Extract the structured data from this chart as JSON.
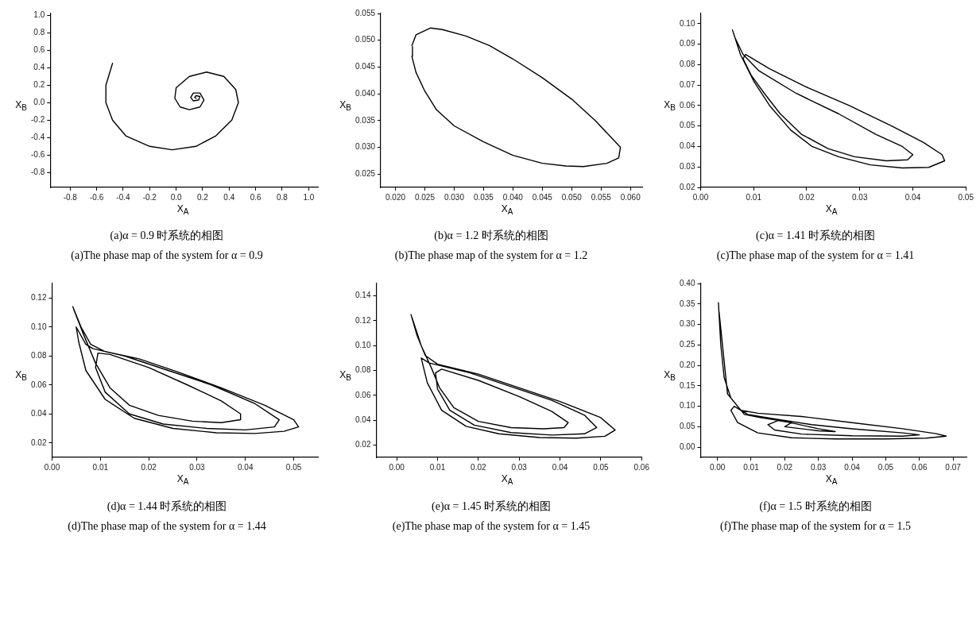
{
  "chart_data": [
    {
      "type": "line",
      "xlabel": "X$_{A}$",
      "ylabel": "X$_{B}$",
      "annotations": [
        "(a)α = 0.9 时系统的相图",
        "(a)The phase map of the system for α = 0.9"
      ],
      "grid": false,
      "legend": false,
      "marker": "none",
      "line_style": "solid",
      "xlim": [
        -0.95,
        1.07
      ],
      "ylim": [
        -0.97,
        1.02
      ],
      "xticks": [
        {
          "value": -0.8,
          "label": "-0.8"
        },
        {
          "value": -0.6,
          "label": "-0.6"
        },
        {
          "value": -0.4,
          "label": "-0.4"
        },
        {
          "value": -0.2,
          "label": "-0.2"
        },
        {
          "value": 0,
          "label": "0.0"
        },
        {
          "value": 0.2,
          "label": "0.2"
        },
        {
          "value": 0.4,
          "label": "0.4"
        },
        {
          "value": 0.6,
          "label": "0.6"
        },
        {
          "value": 0.8,
          "label": "0.8"
        },
        {
          "value": 1,
          "label": "1.0"
        }
      ],
      "yticks": [
        {
          "value": -0.8,
          "label": "-0.8"
        },
        {
          "value": -0.6,
          "label": "-0.6"
        },
        {
          "value": -0.4,
          "label": "-0.4"
        },
        {
          "value": -0.2,
          "label": "-0.2"
        },
        {
          "value": 0,
          "label": "0.0"
        },
        {
          "value": 0.2,
          "label": "0.2"
        },
        {
          "value": 0.4,
          "label": "0.4"
        },
        {
          "value": 0.6,
          "label": "0.6"
        },
        {
          "value": 0.8,
          "label": "0.8"
        },
        {
          "value": 1,
          "label": "1.0"
        }
      ],
      "series": [
        {
          "color": "#000000",
          "x": [
            -0.48,
            -0.53,
            -0.53,
            -0.48,
            -0.38,
            -0.2,
            -0.03,
            0.15,
            0.3,
            0.42,
            0.47,
            0.45,
            0.36,
            0.23,
            0.1,
            0.0,
            -0.01,
            0.03,
            0.1,
            0.18,
            0.21,
            0.18,
            0.13,
            0.11,
            0.13,
            0.17,
            0.18,
            0.15,
            0.14,
            0.15
          ],
          "values": [
            0.45,
            0.2,
            0.0,
            -0.2,
            -0.38,
            -0.5,
            -0.54,
            -0.5,
            -0.38,
            -0.2,
            0.0,
            0.15,
            0.3,
            0.35,
            0.3,
            0.17,
            0.05,
            -0.05,
            -0.08,
            -0.05,
            0.03,
            0.11,
            0.11,
            0.06,
            0.02,
            0.03,
            0.07,
            0.08,
            0.06,
            0.05
          ]
        }
      ]
    },
    {
      "type": "line",
      "xlabel": "X$_{A}$",
      "ylabel": "X$_{B}$",
      "annotations": [
        "(b)α = 1.2 时系统的相图",
        "(b)The phase map of the system for α = 1.2"
      ],
      "grid": false,
      "legend": false,
      "marker": "none",
      "line_style": "solid",
      "xlim": [
        0.0175,
        0.062
      ],
      "ylim": [
        0.0225,
        0.055
      ],
      "xticks": [
        {
          "value": 0.02,
          "label": "0.020"
        },
        {
          "value": 0.025,
          "label": "0.025"
        },
        {
          "value": 0.03,
          "label": "0.030"
        },
        {
          "value": 0.035,
          "label": "0.035"
        },
        {
          "value": 0.04,
          "label": "0.040"
        },
        {
          "value": 0.045,
          "label": "0.045"
        },
        {
          "value": 0.05,
          "label": "0.050"
        },
        {
          "value": 0.055,
          "label": "0.055"
        },
        {
          "value": 0.06,
          "label": "0.060"
        }
      ],
      "yticks": [
        {
          "value": 0.025,
          "label": "0.025"
        },
        {
          "value": 0.03,
          "label": "0.030"
        },
        {
          "value": 0.035,
          "label": "0.035"
        },
        {
          "value": 0.04,
          "label": "0.040"
        },
        {
          "value": 0.045,
          "label": "0.045"
        },
        {
          "value": 0.05,
          "label": "0.050"
        },
        {
          "value": 0.055,
          "label": "0.055"
        }
      ],
      "series": [
        {
          "color": "#000000",
          "x": [
            0.0228,
            0.0235,
            0.026,
            0.028,
            0.032,
            0.036,
            0.04,
            0.045,
            0.05,
            0.054,
            0.057,
            0.0583,
            0.058,
            0.056,
            0.052,
            0.049,
            0.045,
            0.04,
            0.035,
            0.03,
            0.027,
            0.025,
            0.0235,
            0.0228,
            0.0229
          ],
          "values": [
            0.049,
            0.051,
            0.0523,
            0.052,
            0.0508,
            0.049,
            0.0465,
            0.043,
            0.039,
            0.035,
            0.0315,
            0.03,
            0.028,
            0.027,
            0.0264,
            0.0265,
            0.027,
            0.0285,
            0.031,
            0.034,
            0.037,
            0.0405,
            0.044,
            0.047,
            0.0488
          ]
        }
      ]
    },
    {
      "type": "line",
      "xlabel": "X$_{A}$",
      "ylabel": "X$_{B}$",
      "annotations": [
        "(c)α = 1.41 时系统的相图",
        "(c)The phase map of the system for α = 1.41"
      ],
      "grid": false,
      "legend": false,
      "marker": "none",
      "line_style": "solid",
      "xlim": [
        0,
        0.05
      ],
      "ylim": [
        0.02,
        0.105
      ],
      "xticks": [
        {
          "value": 0,
          "label": "0.00"
        },
        {
          "value": 0.01,
          "label": "0.01"
        },
        {
          "value": 0.02,
          "label": "0.02"
        },
        {
          "value": 0.03,
          "label": "0.03"
        },
        {
          "value": 0.04,
          "label": "0.04"
        },
        {
          "value": 0.05,
          "label": "0.05"
        }
      ],
      "yticks": [
        {
          "value": 0.02,
          "label": "0.02"
        },
        {
          "value": 0.03,
          "label": "0.03"
        },
        {
          "value": 0.04,
          "label": "0.04"
        },
        {
          "value": 0.05,
          "label": "0.05"
        },
        {
          "value": 0.06,
          "label": "0.06"
        },
        {
          "value": 0.07,
          "label": "0.07"
        },
        {
          "value": 0.08,
          "label": "0.08"
        },
        {
          "value": 0.09,
          "label": "0.09"
        },
        {
          "value": 0.1,
          "label": "0.10"
        }
      ],
      "series": [
        {
          "color": "#000000",
          "x": [
            0.006,
            0.0075,
            0.01,
            0.013,
            0.017,
            0.021,
            0.026,
            0.032,
            0.038,
            0.043,
            0.046,
            0.0455,
            0.042,
            0.036,
            0.028,
            0.02,
            0.013,
            0.0085,
            0.008,
            0.0095,
            0.012,
            0.015,
            0.019,
            0.024,
            0.029,
            0.035,
            0.039,
            0.04,
            0.038,
            0.033,
            0.026,
            0.018,
            0.011,
            0.008,
            0.0065,
            0.0062
          ],
          "values": [
            0.097,
            0.085,
            0.072,
            0.06,
            0.048,
            0.04,
            0.035,
            0.031,
            0.0295,
            0.0298,
            0.033,
            0.036,
            0.042,
            0.05,
            0.06,
            0.069,
            0.078,
            0.085,
            0.083,
            0.075,
            0.066,
            0.056,
            0.046,
            0.039,
            0.035,
            0.033,
            0.0335,
            0.036,
            0.04,
            0.046,
            0.056,
            0.066,
            0.077,
            0.085,
            0.093,
            0.0955
          ]
        }
      ]
    },
    {
      "type": "line",
      "xlabel": "X$_{A}$",
      "ylabel": "X$_{B}$",
      "annotations": [
        "(d)α = 1.44 时系统的相图",
        "(d)The phase map of the system for α = 1.44"
      ],
      "grid": false,
      "legend": false,
      "marker": "none",
      "line_style": "solid",
      "xlim": [
        0,
        0.055
      ],
      "ylim": [
        0.01,
        0.13
      ],
      "xticks": [
        {
          "value": 0,
          "label": "0.00"
        },
        {
          "value": 0.01,
          "label": "0.01"
        },
        {
          "value": 0.02,
          "label": "0.02"
        },
        {
          "value": 0.03,
          "label": "0.03"
        },
        {
          "value": 0.04,
          "label": "0.04"
        },
        {
          "value": 0.05,
          "label": "0.05"
        }
      ],
      "yticks": [
        {
          "value": 0.02,
          "label": "0.02"
        },
        {
          "value": 0.04,
          "label": "0.04"
        },
        {
          "value": 0.06,
          "label": "0.06"
        },
        {
          "value": 0.08,
          "label": "0.08"
        },
        {
          "value": 0.1,
          "label": "0.10"
        },
        {
          "value": 0.12,
          "label": "0.12"
        }
      ],
      "series": [
        {
          "color": "#000000",
          "x": [
            0.0043,
            0.006,
            0.008,
            0.011,
            0.018,
            0.026,
            0.035,
            0.044,
            0.05,
            0.051,
            0.048,
            0.042,
            0.034,
            0.025,
            0.017,
            0.011,
            0.007,
            0.0055,
            0.005,
            0.0055,
            0.007,
            0.0085,
            0.015,
            0.024,
            0.033,
            0.042,
            0.047,
            0.046,
            0.04,
            0.032,
            0.023,
            0.016,
            0.011,
            0.009,
            0.0095,
            0.012,
            0.02,
            0.028,
            0.035,
            0.039,
            0.039,
            0.035,
            0.029,
            0.022,
            0.016,
            0.012,
            0.009,
            0.0065,
            0.0045
          ],
          "values": [
            0.114,
            0.1,
            0.088,
            0.083,
            0.078,
            0.069,
            0.058,
            0.046,
            0.036,
            0.031,
            0.028,
            0.0265,
            0.027,
            0.03,
            0.037,
            0.05,
            0.07,
            0.09,
            0.1,
            0.097,
            0.088,
            0.085,
            0.08,
            0.07,
            0.06,
            0.047,
            0.036,
            0.031,
            0.029,
            0.03,
            0.033,
            0.04,
            0.055,
            0.072,
            0.082,
            0.081,
            0.072,
            0.06,
            0.049,
            0.04,
            0.036,
            0.034,
            0.035,
            0.039,
            0.046,
            0.058,
            0.075,
            0.095,
            0.112
          ]
        }
      ]
    },
    {
      "type": "line",
      "xlabel": "X$_{A}$",
      "ylabel": "X$_{B}$",
      "annotations": [
        "(e)α = 1.45 时系统的相图",
        "(e)The phase map of the system for α = 1.45"
      ],
      "grid": false,
      "legend": false,
      "marker": "none",
      "line_style": "solid",
      "xlim": [
        -0.005,
        0.06
      ],
      "ylim": [
        0.01,
        0.15
      ],
      "xticks": [
        {
          "value": 0,
          "label": "0.00"
        },
        {
          "value": 0.01,
          "label": "0.01"
        },
        {
          "value": 0.02,
          "label": "0.02"
        },
        {
          "value": 0.03,
          "label": "0.03"
        },
        {
          "value": 0.04,
          "label": "0.04"
        },
        {
          "value": 0.05,
          "label": "0.05"
        },
        {
          "value": 0.06,
          "label": "0.06"
        }
      ],
      "yticks": [
        {
          "value": 0.02,
          "label": "0.02"
        },
        {
          "value": 0.04,
          "label": "0.04"
        },
        {
          "value": 0.06,
          "label": "0.06"
        },
        {
          "value": 0.08,
          "label": "0.08"
        },
        {
          "value": 0.1,
          "label": "0.10"
        },
        {
          "value": 0.12,
          "label": "0.12"
        },
        {
          "value": 0.14,
          "label": "0.14"
        }
      ],
      "series": [
        {
          "color": "#000000",
          "x": [
            0.0035,
            0.005,
            0.007,
            0.01,
            0.02,
            0.03,
            0.04,
            0.05,
            0.0535,
            0.051,
            0.044,
            0.035,
            0.025,
            0.017,
            0.011,
            0.0075,
            0.006,
            0.008,
            0.018,
            0.028,
            0.038,
            0.046,
            0.049,
            0.046,
            0.038,
            0.028,
            0.019,
            0.013,
            0.01,
            0.0095,
            0.011,
            0.02,
            0.03,
            0.038,
            0.042,
            0.041,
            0.036,
            0.028,
            0.02,
            0.014,
            0.0105,
            0.0085,
            0.006,
            0.0037
          ],
          "values": [
            0.125,
            0.108,
            0.092,
            0.085,
            0.077,
            0.066,
            0.055,
            0.042,
            0.032,
            0.027,
            0.0255,
            0.026,
            0.029,
            0.035,
            0.048,
            0.07,
            0.09,
            0.086,
            0.078,
            0.067,
            0.056,
            0.044,
            0.034,
            0.029,
            0.028,
            0.03,
            0.036,
            0.048,
            0.065,
            0.078,
            0.081,
            0.072,
            0.059,
            0.047,
            0.038,
            0.034,
            0.033,
            0.034,
            0.039,
            0.05,
            0.066,
            0.082,
            0.1,
            0.123
          ]
        }
      ]
    },
    {
      "type": "line",
      "xlabel": "X$_{A}$",
      "ylabel": "X$_{B}$",
      "annotations": [
        "(f)α = 1.5 时系统的相图",
        "(f)The phase map of the system for α = 1.5"
      ],
      "grid": false,
      "legend": false,
      "marker": "none",
      "line_style": "solid",
      "xlim": [
        -0.005,
        0.074
      ],
      "ylim": [
        -0.025,
        0.4
      ],
      "xticks": [
        {
          "value": 0,
          "label": "0.00"
        },
        {
          "value": 0.01,
          "label": "0.01"
        },
        {
          "value": 0.02,
          "label": "0.02"
        },
        {
          "value": 0.03,
          "label": "0.03"
        },
        {
          "value": 0.04,
          "label": "0.04"
        },
        {
          "value": 0.05,
          "label": "0.05"
        },
        {
          "value": 0.06,
          "label": "0.06"
        },
        {
          "value": 0.07,
          "label": "0.07"
        }
      ],
      "yticks": [
        {
          "value": 0,
          "label": "0.00"
        },
        {
          "value": 0.05,
          "label": "0.05"
        },
        {
          "value": 0.1,
          "label": "0.10"
        },
        {
          "value": 0.15,
          "label": "0.15"
        },
        {
          "value": 0.2,
          "label": "0.20"
        },
        {
          "value": 0.25,
          "label": "0.25"
        },
        {
          "value": 0.3,
          "label": "0.30"
        },
        {
          "value": 0.35,
          "label": "0.35"
        },
        {
          "value": 0.4,
          "label": "0.40"
        }
      ],
      "series": [
        {
          "color": "#000000",
          "x": [
            0.0003,
            0.001,
            0.002,
            0.004,
            0.007,
            0.012,
            0.025,
            0.04,
            0.055,
            0.065,
            0.068,
            0.062,
            0.05,
            0.035,
            0.022,
            0.012,
            0.006,
            0.004,
            0.005,
            0.009,
            0.018,
            0.028,
            0.04,
            0.055,
            0.06,
            0.055,
            0.04,
            0.025,
            0.017,
            0.015,
            0.018,
            0.022,
            0.02,
            0.03,
            0.035,
            0.03,
            0.02,
            0.013,
            0.008,
            0.003,
            0.0005
          ],
          "values": [
            0.353,
            0.25,
            0.17,
            0.12,
            0.09,
            0.083,
            0.075,
            0.06,
            0.045,
            0.033,
            0.027,
            0.022,
            0.02,
            0.02,
            0.023,
            0.035,
            0.06,
            0.09,
            0.1,
            0.08,
            0.068,
            0.055,
            0.045,
            0.035,
            0.03,
            0.027,
            0.028,
            0.032,
            0.042,
            0.055,
            0.065,
            0.06,
            0.05,
            0.04,
            0.038,
            0.045,
            0.063,
            0.072,
            0.08,
            0.13,
            0.33
          ]
        }
      ]
    }
  ]
}
